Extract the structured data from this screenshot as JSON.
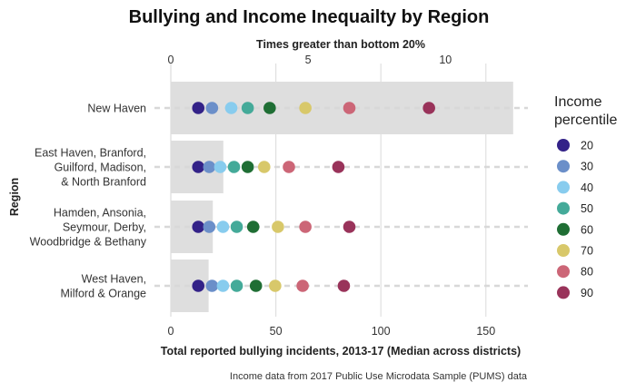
{
  "chart_data": {
    "type": "scatter",
    "title": "Bullying and Income Inequailty by Region",
    "xlabel": "Total reported bullying incidents, 2013-17 (Median across districts)",
    "ylabel": "Region",
    "top_axis_label": "Times greater than bottom 20%",
    "caption": "Income data from 2017 Public Use Microdata Sample (PUMS) data",
    "xlim": [
      0,
      170
    ],
    "x_ticks": [
      0,
      50,
      100,
      150
    ],
    "top_axis_ticks": [
      0,
      5,
      10
    ],
    "top_axis_range": [
      0,
      13
    ],
    "grid": true,
    "legend_title_lines": [
      "Income",
      "percentile"
    ],
    "legend_position": "right",
    "categories": [
      {
        "label_lines": [
          "New Haven"
        ],
        "bar_value": 163,
        "percentile_values": [
          1.0,
          1.5,
          2.2,
          2.8,
          3.6,
          4.9,
          6.5,
          9.4
        ]
      },
      {
        "label_lines": [
          "East Haven, Branford,",
          "Guilford, Madison,",
          "& North Branford"
        ],
        "bar_value": 25,
        "percentile_values": [
          1.0,
          1.4,
          1.8,
          2.3,
          2.8,
          3.4,
          4.3,
          6.1
        ]
      },
      {
        "label_lines": [
          "Hamden, Ansonia,",
          "Seymour, Derby,",
          "Woodbridge & Bethany"
        ],
        "bar_value": 20,
        "percentile_values": [
          1.0,
          1.4,
          1.9,
          2.4,
          3.0,
          3.9,
          4.9,
          6.5
        ]
      },
      {
        "label_lines": [
          "West Haven,",
          "Milford & Orange"
        ],
        "bar_value": 18,
        "percentile_values": [
          1.0,
          1.5,
          1.9,
          2.4,
          3.1,
          3.8,
          4.8,
          6.3
        ]
      }
    ],
    "series": [
      {
        "name": "20",
        "color": "#332288"
      },
      {
        "name": "30",
        "color": "#6b8fc9"
      },
      {
        "name": "40",
        "color": "#88ccee"
      },
      {
        "name": "50",
        "color": "#44aa99"
      },
      {
        "name": "60",
        "color": "#1f6e34"
      },
      {
        "name": "70",
        "color": "#d8c86a"
      },
      {
        "name": "80",
        "color": "#cc6677"
      },
      {
        "name": "90",
        "color": "#99335a"
      }
    ]
  }
}
